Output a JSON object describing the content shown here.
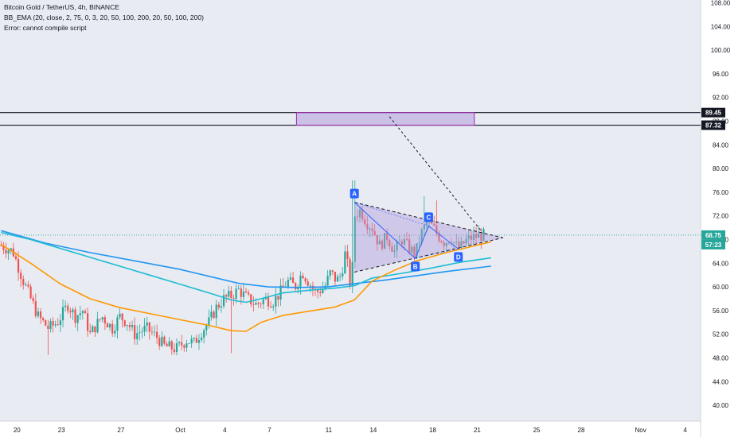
{
  "header": {
    "symbol_line": "Bitcoin Gold / TetherUS, 4h, BINANCE",
    "indicator_line": "BB_EMA (20, close, 2, 75, 0, 3, 20, 50, 100, 200, 20, 50, 100, 200)",
    "error_line": "Error: cannot compile script"
  },
  "colors": {
    "background": "#e8ebf2",
    "bull": "#26a69a",
    "bear": "#ef5350",
    "ema_orange": "#ff9800",
    "ema_teal": "#1fbcd2",
    "ema_blue": "#2196f3",
    "pattern_fill": "#b39ddb",
    "price_tag": "#26a69a",
    "level_tag": "#131722"
  },
  "chart_data": {
    "type": "candlestick",
    "y_axis": {
      "ticks": [
        "40.00",
        "44.00",
        "48.00",
        "52.00",
        "56.00",
        "60.00",
        "64.00",
        "68.00",
        "72.00",
        "76.00",
        "80.00",
        "84.00",
        "88.00",
        "92.00",
        "96.00",
        "100.00",
        "104.00",
        "108.00"
      ],
      "range": [
        38.6,
        109
      ]
    },
    "x_axis": {
      "ticks": [
        "20",
        "23",
        "27",
        "Oct",
        "4",
        "7",
        "11",
        "14",
        "18",
        "21",
        "25",
        "28",
        "Nov",
        "4"
      ]
    },
    "price_labels": {
      "upper_level": "89.45",
      "lower_level": "87.32",
      "last_price": "68.75",
      "countdown": "57:23"
    },
    "levels": [
      89.45,
      87.32
    ],
    "target_box": {
      "from_day": 14,
      "to_day": 36.7,
      "low": 87.32,
      "high": 89.45
    },
    "pattern_points": [
      {
        "label": "A",
        "day": 23.8,
        "price": 74.3
      },
      {
        "label": "B",
        "day": 27.9,
        "price": 64.8
      },
      {
        "label": "C",
        "day": 28.8,
        "price": 70.3
      },
      {
        "label": "D",
        "day": 30.8,
        "price": 66.4
      }
    ],
    "triangle": {
      "apex_day": 33.8,
      "apex_price": 68.3,
      "upper_start": 74.3,
      "lower_start": 62.5,
      "start_day": 23.8
    },
    "projection": {
      "from_day": 32.3,
      "from_price": 69.6,
      "to_day": 35.4,
      "to_price": 88.8
    },
    "ema_orange": [
      [
        0,
        67.2
      ],
      [
        2,
        64
      ],
      [
        4,
        60.5
      ],
      [
        6,
        58
      ],
      [
        8,
        56.5
      ],
      [
        10,
        55.5
      ],
      [
        12,
        54.5
      ],
      [
        14,
        53.5
      ],
      [
        15.5,
        52.6
      ],
      [
        16.5,
        52.5
      ],
      [
        17.5,
        54
      ],
      [
        19,
        55.2
      ],
      [
        21,
        56
      ],
      [
        22.5,
        56.6
      ],
      [
        23.8,
        57.8
      ],
      [
        25,
        61
      ],
      [
        26.5,
        62.8
      ],
      [
        28,
        64.4
      ],
      [
        30,
        65.8
      ],
      [
        32,
        67
      ],
      [
        33,
        67.6
      ]
    ],
    "ema_teal": [
      [
        0,
        69.2
      ],
      [
        2,
        68
      ],
      [
        4,
        66.5
      ],
      [
        6,
        65
      ],
      [
        8,
        63.5
      ],
      [
        10,
        62
      ],
      [
        12,
        60.5
      ],
      [
        14,
        59
      ],
      [
        15.5,
        57.8
      ],
      [
        16.5,
        57.4
      ],
      [
        17.5,
        58
      ],
      [
        19,
        59
      ],
      [
        21,
        59.5
      ],
      [
        22.5,
        59.8
      ],
      [
        23.8,
        60.2
      ],
      [
        25,
        61.5
      ],
      [
        27,
        62.3
      ],
      [
        29,
        63.2
      ],
      [
        31,
        64.2
      ],
      [
        33,
        64.9
      ]
    ],
    "ema_blue": [
      [
        0,
        69.5
      ],
      [
        3,
        67.4
      ],
      [
        6,
        65.8
      ],
      [
        9,
        64.4
      ],
      [
        12,
        63
      ],
      [
        14,
        61.8
      ],
      [
        16,
        60.6
      ],
      [
        18,
        60
      ],
      [
        20,
        59.9
      ],
      [
        22,
        60
      ],
      [
        24,
        60.6
      ],
      [
        26,
        61.2
      ],
      [
        28,
        61.9
      ],
      [
        30,
        62.6
      ],
      [
        33,
        63.5
      ]
    ],
    "ohlc_days": [
      0,
      33
    ]
  }
}
